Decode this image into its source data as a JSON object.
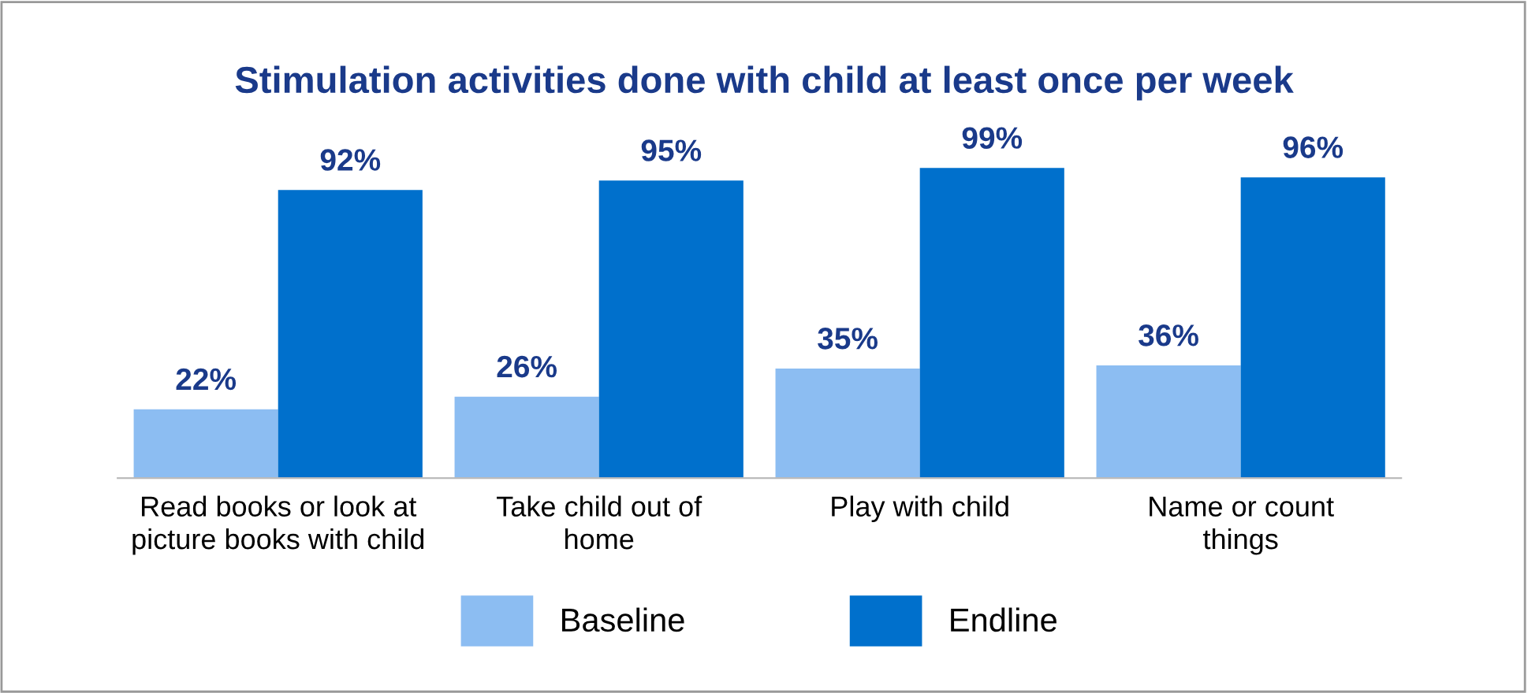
{
  "chart_data": {
    "type": "bar",
    "title": "Stimulation activities done with child at least once per week",
    "categories": [
      "Read books or look at\npicture books with child",
      "Take child out of\nhome",
      "Play with child",
      "Name or count\nthings"
    ],
    "series": [
      {
        "name": "Baseline",
        "color": "#8cbdf2",
        "values": [
          22,
          26,
          35,
          36
        ],
        "value_labels": [
          "22%",
          "26%",
          "35%",
          "36%"
        ]
      },
      {
        "name": "Endline",
        "color": "#0070cc",
        "values": [
          92,
          95,
          99,
          96
        ],
        "value_labels": [
          "92%",
          "95%",
          "99%",
          "96%"
        ]
      }
    ],
    "legend": "bottom",
    "grid": false
  }
}
